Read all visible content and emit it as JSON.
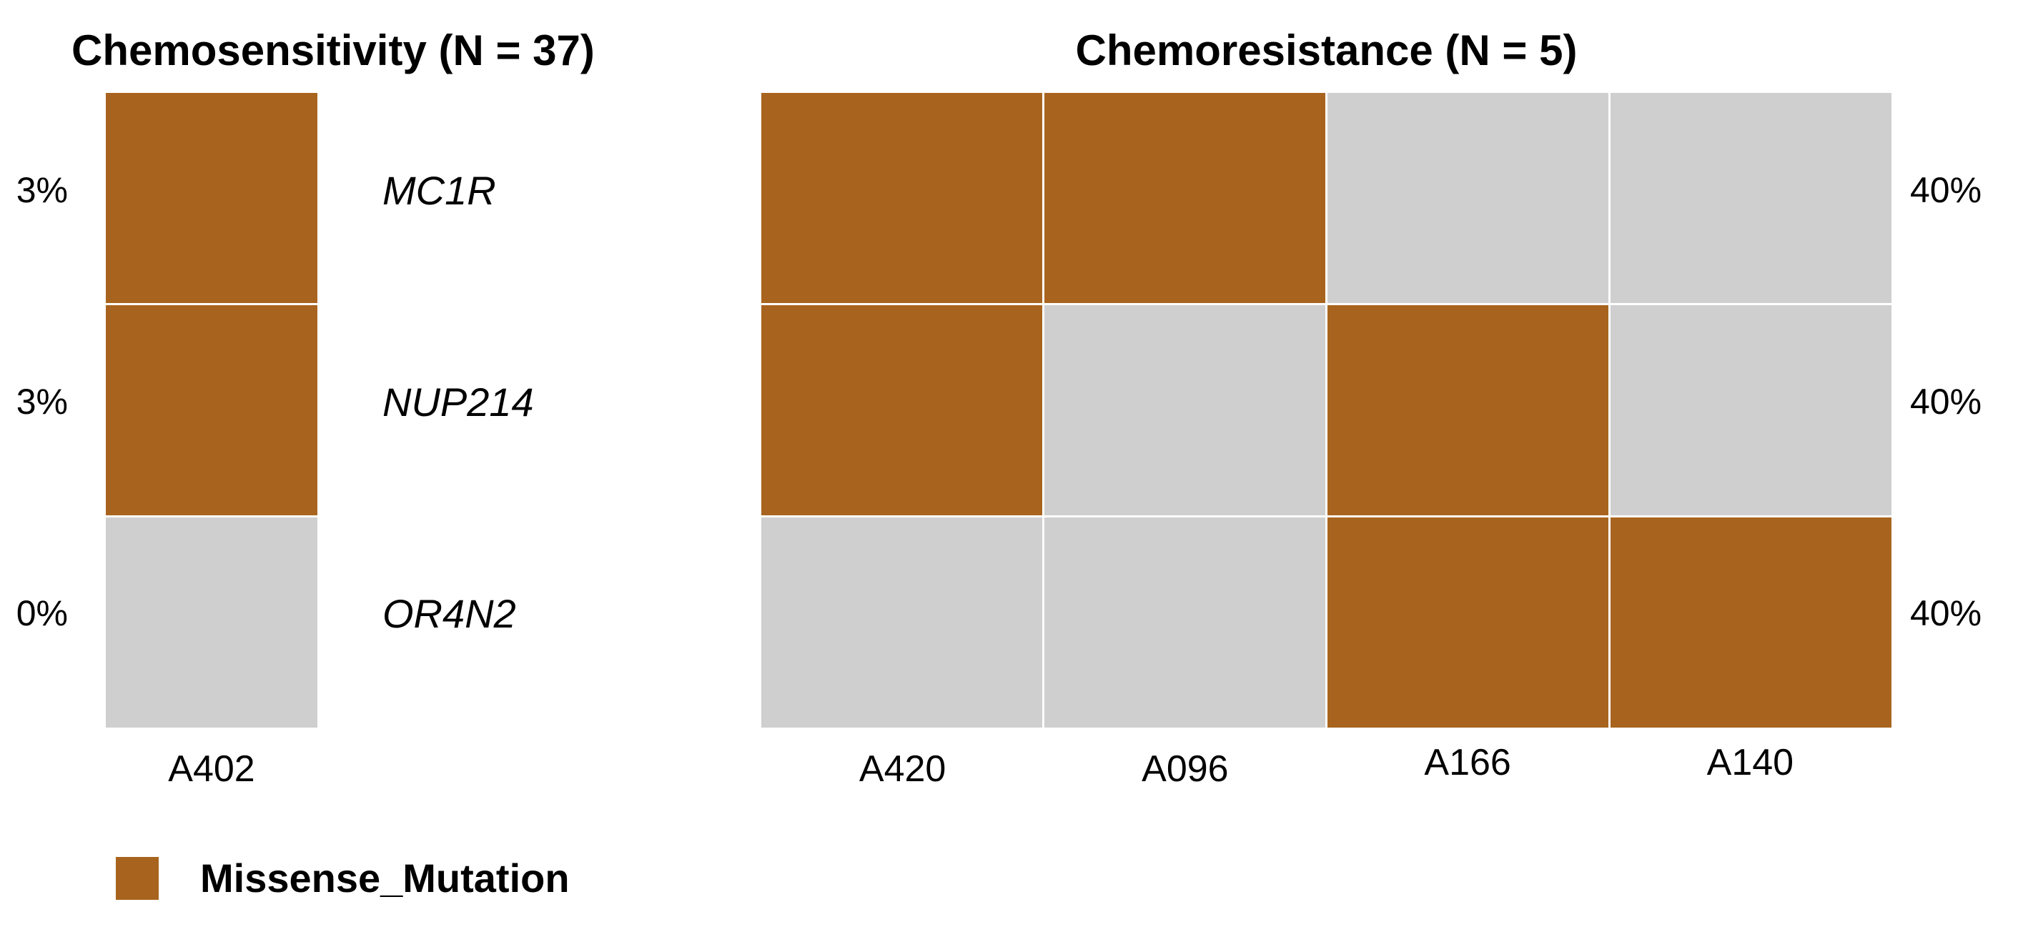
{
  "left_panel": {
    "title": "Chemosensitivity (N = 37)",
    "samples": [
      "A402"
    ],
    "row_percents": [
      "3%",
      "3%",
      "0%"
    ],
    "matrix": [
      [
        1
      ],
      [
        1
      ],
      [
        0
      ]
    ]
  },
  "right_panel": {
    "title": "Chemoresistance (N = 5)",
    "samples": [
      "A420",
      "A096",
      "A166",
      "A140"
    ],
    "row_percents": [
      "40%",
      "40%",
      "40%"
    ],
    "matrix": [
      [
        1,
        1,
        0,
        0
      ],
      [
        1,
        0,
        1,
        0
      ],
      [
        0,
        0,
        1,
        1
      ]
    ]
  },
  "genes": [
    "MC1R",
    "NUP214",
    "OR4N2"
  ],
  "legend": {
    "label": "Missense_Mutation",
    "swatch_color": "#A8641E"
  },
  "colors": {
    "mutated": "#A8641E",
    "not_mutated": "#CFCFCF",
    "text": "#000000",
    "background": "#FFFFFF"
  },
  "chart_data": {
    "type": "heatmap",
    "panels": [
      {
        "title": "Chemosensitivity (N = 37)",
        "columns": [
          "A402"
        ],
        "rows": [
          "MC1R",
          "NUP214",
          "OR4N2"
        ],
        "row_mutation_percent": [
          "3%",
          "3%",
          "0%"
        ],
        "values": [
          [
            1
          ],
          [
            1
          ],
          [
            0
          ]
        ],
        "percent_label_side": "left"
      },
      {
        "title": "Chemoresistance (N = 5)",
        "columns": [
          "A420",
          "A096",
          "A166",
          "A140"
        ],
        "rows": [
          "MC1R",
          "NUP214",
          "OR4N2"
        ],
        "row_mutation_percent": [
          "40%",
          "40%",
          "40%"
        ],
        "values": [
          [
            1,
            1,
            0,
            0
          ],
          [
            1,
            0,
            1,
            0
          ],
          [
            0,
            0,
            1,
            1
          ]
        ],
        "percent_label_side": "right"
      }
    ],
    "value_encoding": {
      "1": "Missense_Mutation",
      "0": "No mutation"
    },
    "legend": [
      {
        "label": "Missense_Mutation",
        "color": "#A8641E"
      }
    ],
    "cell_color_mutated": "#A8641E",
    "cell_color_not_mutated": "#CFCFCF",
    "grid": false,
    "legend_position": "bottom-left"
  }
}
